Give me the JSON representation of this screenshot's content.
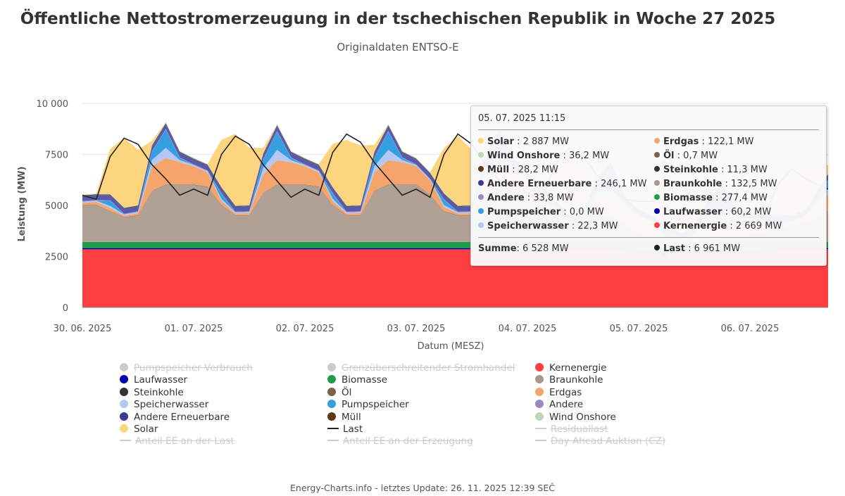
{
  "title": "Öffentliche Nettostromerzeugung in der tschechischen Republik in Woche 27 2025",
  "subtitle": "Originaldaten ENTSO-E",
  "footer": "Energy-Charts.info - letztes Update: 26. 11. 2025 12:39 SEČ",
  "chart_data": {
    "type": "area",
    "stacked": true,
    "ylabel": "Leistung (MW)",
    "xlabel": "Datum (MESZ)",
    "ylim": [
      0,
      10000
    ],
    "yticks": [
      "0",
      "2500",
      "5000",
      "7500",
      "10 000"
    ],
    "xticks": [
      "30. 06. 2025",
      "01. 07. 2025",
      "02. 07. 2025",
      "03. 07. 2025",
      "04. 07. 2025",
      "05. 07. 2025",
      "06. 07. 2025"
    ],
    "grid": true,
    "legend_position": "bottom",
    "x": [
      "30.06 00:00",
      "30.06 03:00",
      "30.06 06:00",
      "30.06 09:00",
      "30.06 12:00",
      "30.06 15:00",
      "30.06 18:00",
      "30.06 21:00",
      "01.07 00:00",
      "01.07 03:00",
      "01.07 06:00",
      "01.07 09:00",
      "01.07 12:00",
      "01.07 15:00",
      "01.07 18:00",
      "01.07 21:00",
      "02.07 00:00",
      "02.07 03:00",
      "02.07 06:00",
      "02.07 09:00",
      "02.07 12:00",
      "02.07 15:00",
      "02.07 18:00",
      "02.07 21:00",
      "03.07 00:00",
      "03.07 03:00",
      "03.07 06:00",
      "03.07 09:00",
      "03.07 12:00",
      "03.07 15:00",
      "03.07 18:00",
      "03.07 21:00",
      "04.07 00:00",
      "04.07 03:00",
      "04.07 06:00",
      "04.07 09:00",
      "04.07 12:00",
      "04.07 15:00",
      "04.07 18:00",
      "04.07 21:00",
      "05.07 00:00",
      "05.07 03:00",
      "05.07 06:00",
      "05.07 09:00",
      "05.07 12:00",
      "05.07 15:00",
      "05.07 18:00",
      "05.07 21:00",
      "06.07 00:00",
      "06.07 03:00",
      "06.07 06:00",
      "06.07 09:00",
      "06.07 12:00",
      "06.07 15:00"
    ],
    "series": [
      {
        "name": "Kernenergie",
        "color": "#fd3f40",
        "values": [
          2850,
          2850,
          2850,
          2850,
          2850,
          2850,
          2850,
          2850,
          2850,
          2850,
          2850,
          2850,
          2850,
          2850,
          2850,
          2850,
          2850,
          2850,
          2850,
          2850,
          2850,
          2850,
          2850,
          2850,
          2850,
          2850,
          2850,
          2850,
          2850,
          2850,
          2850,
          2850,
          2850,
          2850,
          2850,
          2850,
          2850,
          2850,
          2850,
          2850,
          2650,
          2650,
          2650,
          2650,
          2650,
          2650,
          2650,
          2650,
          2650,
          2700,
          2850,
          2850,
          2850,
          2850
        ]
      },
      {
        "name": "Laufwasser",
        "color": "#0000b0",
        "values": [
          60,
          60,
          60,
          60,
          60,
          60,
          60,
          60,
          60,
          60,
          60,
          60,
          60,
          60,
          60,
          60,
          60,
          60,
          60,
          60,
          60,
          60,
          60,
          60,
          60,
          60,
          60,
          60,
          60,
          60,
          60,
          60,
          60,
          60,
          60,
          60,
          60,
          60,
          60,
          60,
          60,
          60,
          60,
          60,
          60,
          60,
          60,
          60,
          60,
          60,
          60,
          60,
          60,
          60
        ]
      },
      {
        "name": "Biomasse",
        "color": "#1e9e4a",
        "values": [
          300,
          300,
          300,
          300,
          300,
          300,
          300,
          300,
          300,
          300,
          300,
          300,
          300,
          300,
          300,
          300,
          300,
          300,
          300,
          300,
          300,
          300,
          300,
          300,
          300,
          300,
          300,
          300,
          300,
          300,
          300,
          300,
          300,
          300,
          300,
          300,
          300,
          300,
          300,
          300,
          300,
          300,
          300,
          300,
          300,
          300,
          300,
          300,
          300,
          300,
          300,
          300,
          300,
          300
        ]
      },
      {
        "name": "Braunkohle",
        "color": "#a8978a",
        "values": [
          1800,
          1800,
          1500,
          1200,
          1300,
          2500,
          2800,
          2800,
          2800,
          2700,
          1800,
          1300,
          1300,
          2400,
          2800,
          2800,
          2800,
          2700,
          1800,
          1300,
          1300,
          2500,
          2800,
          2800,
          2800,
          2300,
          1500,
          1300,
          1300,
          2300,
          2700,
          2600,
          2200,
          1800,
          1200,
          900,
          900,
          1300,
          1200,
          800,
          500,
          400,
          200,
          130,
          150,
          300,
          350,
          400,
          500,
          600,
          600,
          800,
          900,
          1500
        ]
      },
      {
        "name": "Steinkohle",
        "color": "#333333",
        "values": [
          11,
          11,
          11,
          11,
          11,
          11,
          11,
          11,
          11,
          11,
          11,
          11,
          11,
          11,
          11,
          11,
          11,
          11,
          11,
          11,
          11,
          11,
          11,
          11,
          11,
          11,
          11,
          11,
          11,
          11,
          11,
          11,
          11,
          11,
          11,
          11,
          11,
          11,
          11,
          11,
          11,
          11,
          11,
          11,
          11,
          11,
          11,
          11,
          11,
          11,
          11,
          11,
          11,
          11
        ]
      },
      {
        "name": "Öl",
        "color": "#7d6148",
        "values": [
          1,
          1,
          1,
          1,
          1,
          1,
          1,
          1,
          1,
          1,
          1,
          1,
          1,
          1,
          1,
          1,
          1,
          1,
          1,
          1,
          1,
          1,
          1,
          1,
          1,
          1,
          1,
          1,
          1,
          1,
          1,
          1,
          1,
          1,
          1,
          1,
          1,
          1,
          1,
          1,
          1,
          1,
          1,
          1,
          1,
          1,
          1,
          1,
          1,
          1,
          1,
          1,
          1,
          1
        ]
      },
      {
        "name": "Erdgas",
        "color": "#f5a56b",
        "values": [
          100,
          150,
          150,
          80,
          100,
          1200,
          1300,
          1100,
          900,
          700,
          200,
          80,
          100,
          900,
          1200,
          1100,
          900,
          700,
          200,
          80,
          100,
          900,
          1200,
          1100,
          900,
          700,
          200,
          80,
          100,
          900,
          1100,
          1000,
          800,
          600,
          150,
          80,
          100,
          800,
          1000,
          900,
          900,
          700,
          120,
          120,
          300,
          900,
          1000,
          900,
          800,
          500,
          100,
          100,
          300,
          800
        ]
      },
      {
        "name": "Speicherwasser",
        "color": "#b5c8f5",
        "values": [
          60,
          60,
          100,
          60,
          60,
          300,
          500,
          100,
          60,
          60,
          100,
          60,
          60,
          300,
          500,
          100,
          60,
          60,
          100,
          60,
          60,
          300,
          500,
          100,
          60,
          60,
          100,
          60,
          60,
          300,
          500,
          100,
          60,
          60,
          100,
          60,
          60,
          300,
          500,
          100,
          60,
          60,
          100,
          60,
          60,
          300,
          500,
          100,
          60,
          60,
          100,
          60,
          60,
          300
        ]
      },
      {
        "name": "Pumpspeicher",
        "color": "#35a0e0",
        "values": [
          0,
          0,
          250,
          0,
          0,
          400,
          900,
          100,
          0,
          0,
          250,
          0,
          0,
          400,
          900,
          100,
          0,
          0,
          250,
          0,
          0,
          400,
          900,
          100,
          0,
          0,
          250,
          0,
          0,
          400,
          900,
          100,
          0,
          0,
          250,
          0,
          0,
          400,
          900,
          100,
          0,
          0,
          250,
          0,
          0,
          400,
          900,
          100,
          0,
          0,
          250,
          0,
          0,
          400
        ]
      },
      {
        "name": "Andere",
        "color": "#9b89c0",
        "values": [
          34,
          34,
          34,
          34,
          34,
          34,
          34,
          34,
          34,
          34,
          34,
          34,
          34,
          34,
          34,
          34,
          34,
          34,
          34,
          34,
          34,
          34,
          34,
          34,
          34,
          34,
          34,
          34,
          34,
          34,
          34,
          34,
          34,
          34,
          34,
          34,
          34,
          34,
          34,
          34,
          34,
          34,
          34,
          34,
          34,
          34,
          34,
          34,
          34,
          34,
          34,
          34,
          34,
          34
        ]
      },
      {
        "name": "Andere Erneuerbare",
        "color": "#5a5aaa",
        "values": [
          250,
          250,
          250,
          250,
          250,
          250,
          250,
          250,
          250,
          250,
          250,
          250,
          250,
          250,
          250,
          250,
          250,
          250,
          250,
          250,
          250,
          250,
          250,
          250,
          250,
          250,
          250,
          250,
          250,
          250,
          250,
          250,
          250,
          250,
          250,
          250,
          250,
          250,
          250,
          250,
          250,
          250,
          250,
          250,
          250,
          250,
          250,
          250,
          250,
          250,
          250,
          250,
          250,
          250
        ]
      },
      {
        "name": "Müll",
        "color": "#5a3a10",
        "values": [
          28,
          28,
          28,
          28,
          28,
          28,
          28,
          28,
          28,
          28,
          28,
          28,
          28,
          28,
          28,
          28,
          28,
          28,
          28,
          28,
          28,
          28,
          28,
          28,
          28,
          28,
          28,
          28,
          28,
          28,
          28,
          28,
          28,
          28,
          28,
          28,
          28,
          28,
          28,
          28,
          28,
          28,
          28,
          28,
          28,
          28,
          28,
          28,
          28,
          28,
          28,
          28,
          28,
          28
        ]
      },
      {
        "name": "Wind Onshore",
        "color": "#bcd8b8",
        "values": [
          36,
          36,
          36,
          36,
          36,
          36,
          36,
          36,
          36,
          36,
          36,
          36,
          36,
          36,
          36,
          36,
          36,
          36,
          36,
          36,
          36,
          36,
          36,
          36,
          36,
          36,
          36,
          36,
          36,
          36,
          36,
          36,
          36,
          36,
          36,
          36,
          36,
          36,
          36,
          36,
          36,
          36,
          36,
          36,
          36,
          36,
          36,
          36,
          36,
          36,
          36,
          36,
          36,
          36
        ]
      },
      {
        "name": "Solar",
        "color": "#fdd57e",
        "values": [
          0,
          0,
          2200,
          3400,
          2700,
          200,
          0,
          0,
          0,
          0,
          2300,
          3500,
          2800,
          250,
          0,
          0,
          0,
          0,
          2100,
          3200,
          2900,
          300,
          0,
          0,
          0,
          0,
          2200,
          3400,
          2700,
          200,
          0,
          0,
          0,
          0,
          2000,
          3000,
          2500,
          200,
          0,
          0,
          0,
          0,
          2800,
          2900,
          2300,
          300,
          0,
          0,
          0,
          0,
          1800,
          2700,
          2400,
          400
        ]
      }
    ],
    "line": {
      "name": "Last",
      "color": "#222222",
      "values": [
        5500,
        5300,
        7400,
        8300,
        8000,
        7000,
        6300,
        5500,
        5800,
        5500,
        7500,
        8400,
        8000,
        7000,
        6200,
        5400,
        5800,
        5500,
        7600,
        8500,
        8100,
        7100,
        6300,
        5500,
        5800,
        5400,
        7500,
        8500,
        8000,
        7000,
        6200,
        5500,
        5600,
        5300,
        7000,
        7800,
        7400,
        6500,
        5800,
        5300,
        5200,
        5200,
        6600,
        7000,
        6500,
        5700,
        5000,
        4500,
        4400,
        4500,
        6000,
        6800,
        6300,
        5800
      ]
    }
  },
  "legend": [
    {
      "label": "Pumpspeicher Verbrauch",
      "color": "#cccccc",
      "kind": "dot",
      "hidden": true
    },
    {
      "label": "Grenzüberschreitender Stromhandel",
      "color": "#cccccc",
      "kind": "dot",
      "hidden": true
    },
    {
      "label": "Kernenergie",
      "color": "#fd3f40",
      "kind": "dot",
      "hidden": false
    },
    {
      "label": "Laufwasser",
      "color": "#0000b0",
      "kind": "dot",
      "hidden": false
    },
    {
      "label": "Biomasse",
      "color": "#1e9e4a",
      "kind": "dot",
      "hidden": false
    },
    {
      "label": "Braunkohle",
      "color": "#a8978a",
      "kind": "dot",
      "hidden": false
    },
    {
      "label": "Steinkohle",
      "color": "#333333",
      "kind": "dot",
      "hidden": false
    },
    {
      "label": "Öl",
      "color": "#7d6148",
      "kind": "dot",
      "hidden": false
    },
    {
      "label": "Erdgas",
      "color": "#f5a56b",
      "kind": "dot",
      "hidden": false
    },
    {
      "label": "Speicherwasser",
      "color": "#b5c8f5",
      "kind": "dot",
      "hidden": false
    },
    {
      "label": "Pumpspeicher",
      "color": "#35a0e0",
      "kind": "dot",
      "hidden": false
    },
    {
      "label": "Andere",
      "color": "#9b89c0",
      "kind": "dot",
      "hidden": false
    },
    {
      "label": "Andere Erneuerbare",
      "color": "#3a3a90",
      "kind": "dot",
      "hidden": false
    },
    {
      "label": "Müll",
      "color": "#5a3a10",
      "kind": "dot",
      "hidden": false
    },
    {
      "label": "Wind Onshore",
      "color": "#bcd8b8",
      "kind": "dot",
      "hidden": false
    },
    {
      "label": "Solar",
      "color": "#fdd57e",
      "kind": "dot",
      "hidden": false
    },
    {
      "label": "Last",
      "color": "#222222",
      "kind": "line",
      "hidden": false
    },
    {
      "label": "Residuallast",
      "color": "#cccccc",
      "kind": "line",
      "hidden": true
    },
    {
      "label": "Anteil EE an der Last",
      "color": "#cccccc",
      "kind": "line",
      "hidden": true
    },
    {
      "label": "Anteil EE an der Erzeugung",
      "color": "#cccccc",
      "kind": "line",
      "hidden": true
    },
    {
      "label": "Day Ahead Auktion (CZ)",
      "color": "#cccccc",
      "kind": "line",
      "hidden": true
    }
  ],
  "tooltip": {
    "date": "05. 07. 2025 11:15",
    "rows": [
      {
        "label": "Solar",
        "value": "2 887 MW",
        "color": "#fdd57e"
      },
      {
        "label": "Wind Onshore",
        "value": "36,2 MW",
        "color": "#bcd8b8"
      },
      {
        "label": "Müll",
        "value": "28,2 MW",
        "color": "#5a3a10"
      },
      {
        "label": "Andere Erneuerbare",
        "value": "246,1 MW",
        "color": "#3a3a90"
      },
      {
        "label": "Andere",
        "value": "33,8 MW",
        "color": "#9b89c0"
      },
      {
        "label": "Pumpspeicher",
        "value": "0,0 MW",
        "color": "#35a0e0"
      },
      {
        "label": "Speicherwasser",
        "value": "22,3 MW",
        "color": "#b5c8f5"
      },
      {
        "label": "Erdgas",
        "value": "122,1 MW",
        "color": "#f5a56b"
      },
      {
        "label": "Öl",
        "value": "0,7 MW",
        "color": "#7d6148"
      },
      {
        "label": "Steinkohle",
        "value": "11,3 MW",
        "color": "#333333"
      },
      {
        "label": "Braunkohle",
        "value": "132,5 MW",
        "color": "#a8978a"
      },
      {
        "label": "Biomasse",
        "value": "277,4 MW",
        "color": "#1e9e4a"
      },
      {
        "label": "Laufwasser",
        "value": "60,2 MW",
        "color": "#0000b0"
      },
      {
        "label": "Kernenergie",
        "value": "2 669 MW",
        "color": "#fd3f40"
      }
    ],
    "sum_label": "Summe",
    "sum_value": "6 528 MW",
    "last_label": "Last",
    "last_value": "6 961 MW",
    "last_color": "#222222"
  }
}
